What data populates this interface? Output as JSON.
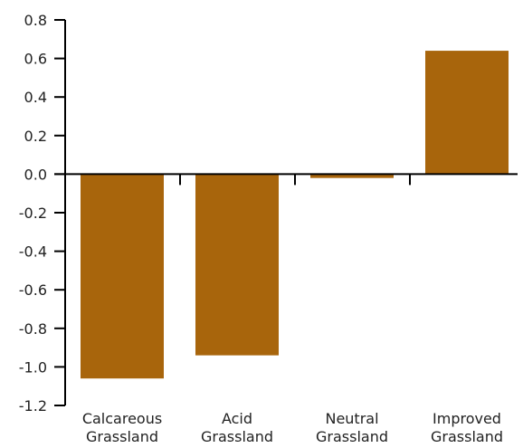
{
  "chart_data": {
    "type": "bar",
    "categories": [
      [
        "Calcareous",
        "Grassland"
      ],
      [
        "Acid",
        "Grassland"
      ],
      [
        "Neutral",
        "Grassland"
      ],
      [
        "Improved",
        "Grassland"
      ]
    ],
    "values": [
      -1.06,
      -0.94,
      -0.02,
      0.64
    ],
    "ylim": [
      -1.2,
      0.8
    ],
    "yticks": [
      "0.8",
      "0.6",
      "0.4",
      "0.2",
      "0.0",
      "-0.2",
      "-0.4",
      "-0.6",
      "-0.8",
      "-1.0",
      "-1.2"
    ],
    "ytick_values": [
      0.8,
      0.6,
      0.4,
      0.2,
      0.0,
      -0.2,
      -0.4,
      -0.6,
      -0.8,
      -1.0,
      -1.2
    ],
    "bar_color": "#a8650c",
    "grid": false,
    "title": "",
    "xlabel": "",
    "ylabel": ""
  }
}
